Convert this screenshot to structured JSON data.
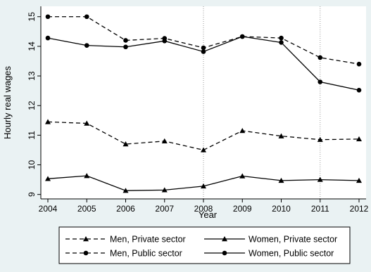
{
  "chart_data": {
    "type": "line",
    "xlabel": "Year",
    "ylabel": "Hourly real wages",
    "x": [
      2004,
      2005,
      2006,
      2007,
      2008,
      2009,
      2010,
      2011,
      2012
    ],
    "xticks": [
      "2004",
      "2005",
      "2006",
      "2007",
      "2008",
      "2009",
      "2010",
      "2011",
      "2012"
    ],
    "yticks": [
      9,
      10,
      11,
      12,
      13,
      14,
      15
    ],
    "ylim": [
      8.85,
      15.35
    ],
    "reference_lines_x": [
      2008,
      2011
    ],
    "grid": false,
    "legend_position": "bottom",
    "series": [
      {
        "name": "Men, Private sector",
        "dash": "dashed",
        "marker": "triangle",
        "values": [
          11.45,
          11.4,
          10.7,
          10.8,
          10.5,
          11.15,
          10.97,
          10.85,
          10.87
        ]
      },
      {
        "name": "Women, Private sector",
        "dash": "solid",
        "marker": "triangle",
        "values": [
          9.53,
          9.63,
          9.13,
          9.15,
          9.28,
          9.62,
          9.47,
          9.5,
          9.47
        ]
      },
      {
        "name": "Men, Public sector",
        "dash": "dashed",
        "marker": "circle",
        "values": [
          15.0,
          15.0,
          14.2,
          14.27,
          13.95,
          14.33,
          14.28,
          13.62,
          13.4
        ]
      },
      {
        "name": "Women, Public sector",
        "dash": "solid",
        "marker": "circle",
        "values": [
          14.28,
          14.03,
          13.98,
          14.18,
          13.82,
          14.33,
          14.13,
          12.8,
          12.52
        ]
      }
    ],
    "colors": {
      "background": "#eaf2f3",
      "plot_area": "#ffffff",
      "line": "#000000",
      "reference": "#9a9a9a"
    }
  }
}
